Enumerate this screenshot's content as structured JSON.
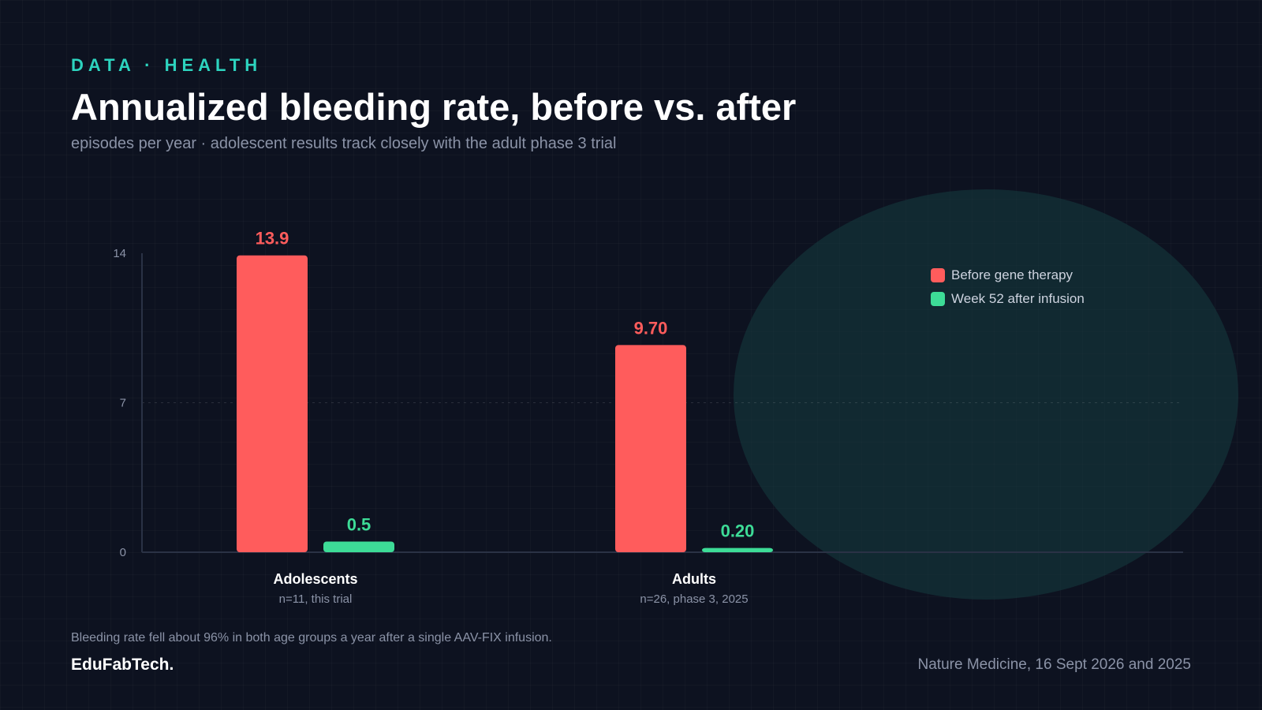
{
  "header": {
    "eyebrow": "DATA · HEALTH",
    "title": "Annualized bleeding rate, before vs. after",
    "subtitle": "episodes per year · adolescent results track closely with the adult phase 3 trial"
  },
  "chart_data": {
    "type": "bar",
    "categories": [
      "Adolescents",
      "Adults"
    ],
    "category_sublabels": [
      "n=11, this trial",
      "n=26, phase 3, 2025"
    ],
    "series": [
      {
        "name": "Before gene therapy",
        "values": [
          13.9,
          9.7
        ],
        "labels": [
          "13.9",
          "9.70"
        ],
        "color": "#ff5c5c"
      },
      {
        "name": "Week 52 after infusion",
        "values": [
          0.5,
          0.2
        ],
        "labels": [
          "0.5",
          "0.20"
        ],
        "color": "#3ddc97"
      }
    ],
    "yticks": [
      "0",
      "7",
      "14"
    ],
    "ylim": [
      0,
      14
    ],
    "grid": "dashed at 7",
    "legend": "top-right"
  },
  "footer": {
    "note": "Bleeding rate fell about 96% in both age groups a year after a single AAV-FIX infusion.",
    "brand": "EduFabTech.",
    "source": "Nature Medicine, 16 Sept 2026 and 2025"
  },
  "colors": {
    "accent": "#2dd4bf",
    "before": "#ff5c5c",
    "after": "#3ddc97",
    "background": "#0d1220"
  }
}
